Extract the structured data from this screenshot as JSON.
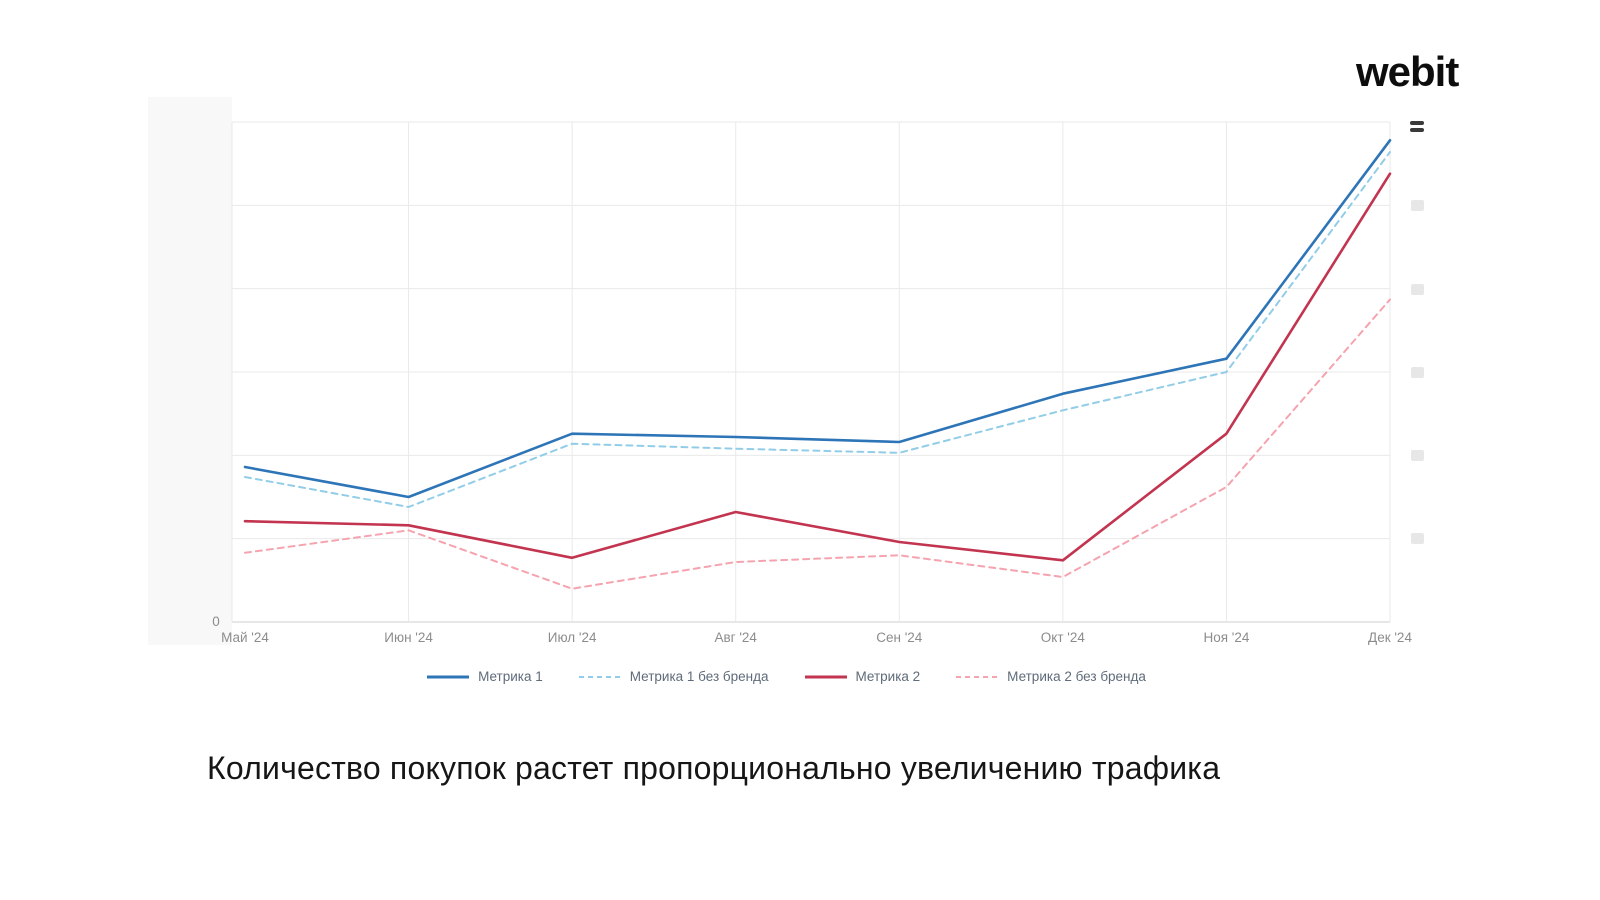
{
  "header": {
    "logo": "webit"
  },
  "caption": {
    "text": "Количество покупок растет пропорционально увеличению трафика"
  },
  "chart_data": {
    "type": "line",
    "title": "",
    "xlabel": "",
    "ylabel": "",
    "categories": [
      "Май '24",
      "Июн '24",
      "Июл '24",
      "Авг '24",
      "Сен '24",
      "Окт '24",
      "Ноя '24",
      "Дек '24"
    ],
    "series": [
      {
        "name": "Метрика 1",
        "color": "#2e75b8",
        "style": "solid",
        "values": [
          1.86,
          1.5,
          2.26,
          2.22,
          2.16,
          2.74,
          3.16,
          5.78
        ]
      },
      {
        "name": "Метрика 1 без бренда",
        "color": "#92cde8",
        "style": "dashed",
        "values": [
          1.74,
          1.38,
          2.14,
          2.08,
          2.03,
          2.54,
          3.0,
          5.64
        ]
      },
      {
        "name": "Метрика 2",
        "color": "#c2344f",
        "style": "solid",
        "values": [
          1.21,
          1.16,
          0.77,
          1.32,
          0.96,
          0.74,
          2.26,
          5.38
        ]
      },
      {
        "name": "Метрика 2 без бренда",
        "color": "#f5a3ae",
        "style": "dashed",
        "values": [
          0.83,
          1.1,
          0.4,
          0.72,
          0.8,
          0.54,
          1.62,
          3.87
        ]
      }
    ],
    "ylim": [
      0,
      6
    ],
    "y_origin_label": "0",
    "grid": true,
    "legend_position": "bottom"
  }
}
